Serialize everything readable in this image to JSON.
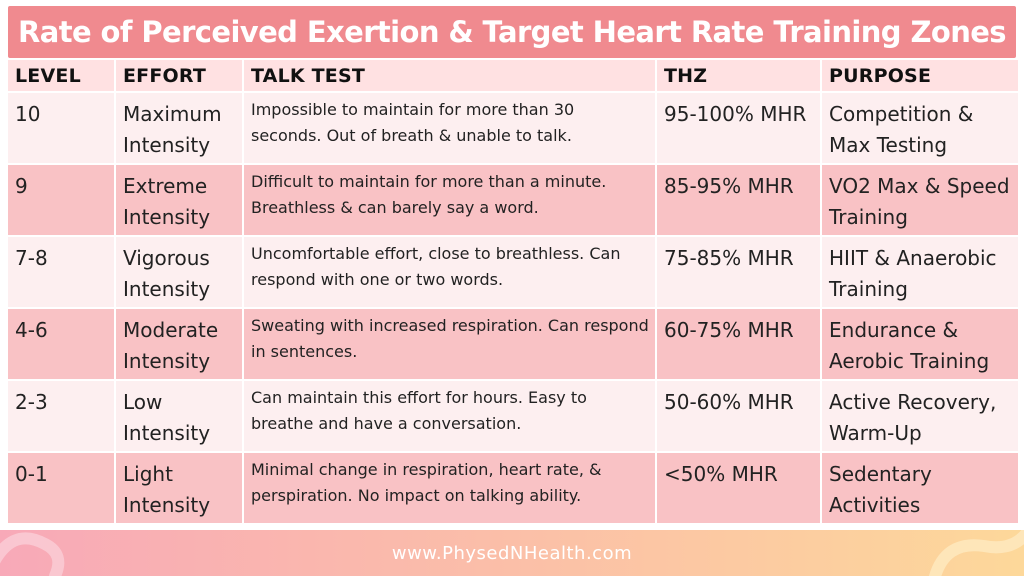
{
  "title": "Rate of Perceived Exertion & Target Heart Rate Training Zones",
  "columns": [
    "LEVEL",
    "EFFORT",
    "TALK TEST",
    "THZ",
    "PURPOSE"
  ],
  "rows": [
    {
      "level": "10",
      "effort": "Maximum Intensity",
      "talk": "Impossible to maintain for more than 30 seconds. Out of breath & unable to talk.",
      "thz": "95-100% MHR",
      "purpose": "Competition & Max Testing"
    },
    {
      "level": "9",
      "effort": "Extreme Intensity",
      "talk": "Difficult to maintain for more than a minute. Breathless & can barely say a word.",
      "thz": "85-95% MHR",
      "purpose": "VO2 Max & Speed Training"
    },
    {
      "level": "7-8",
      "effort": "Vigorous Intensity",
      "talk": "Uncomfortable effort, close to breathless. Can respond with one or two words.",
      "thz": "75-85% MHR",
      "purpose": "HIIT & Anaerobic Training"
    },
    {
      "level": "4-6",
      "effort": "Moderate Intensity",
      "talk": "Sweating with increased respiration. Can respond in sentences.",
      "thz": "60-75% MHR",
      "purpose": "Endurance & Aerobic Training"
    },
    {
      "level": "2-3",
      "effort": "Low Intensity",
      "talk": "Can maintain this effort for hours. Easy to breathe and have a conversation.",
      "thz": "50-60% MHR",
      "purpose": "Active Recovery, Warm-Up"
    },
    {
      "level": "0-1",
      "effort": "Light Intensity",
      "talk": "Minimal change in respiration, heart rate, & perspiration. No impact on talking ability.",
      "thz": "<50% MHR",
      "purpose": "Sedentary Activities"
    }
  ],
  "footer": {
    "url": "www.PhysedNHealth.com"
  },
  "colors": {
    "title_bg": "#f08a8f",
    "header_bg": "#ffe1e2",
    "row_light": "#fdeff0",
    "row_dark": "#f9c2c5"
  }
}
